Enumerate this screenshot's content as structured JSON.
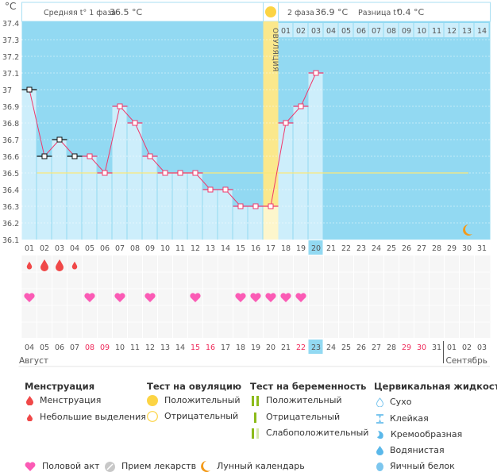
{
  "chart_data": {
    "type": "line",
    "ylabel": "°C",
    "ylim": [
      36.1,
      37.4
    ],
    "yticks": [
      "37.4",
      "37.3",
      "37.2",
      "37.1",
      "37",
      "36.9",
      "36.8",
      "36.7",
      "36.6",
      "36.5",
      "36.4",
      "36.3",
      "36.2",
      "36.1"
    ],
    "header": {
      "phase1_label": "Средняя t° 1 фаза",
      "phase1_value": "36.5 °C",
      "phase2_label": "2 фаза",
      "phase2_value": "36.9 °C",
      "diff_label": "Разница t°",
      "diff_value": "0.4 °C"
    },
    "ovulation_label": "ОВУЛЯЦИЯ",
    "ovulation_day": 17,
    "coverline": 36.5,
    "cycle_days": [
      "01",
      "02",
      "03",
      "04",
      "05",
      "06",
      "07",
      "08",
      "09",
      "10",
      "11",
      "12",
      "13",
      "14",
      "15",
      "16",
      "17",
      "18",
      "19",
      "20",
      "21",
      "22",
      "23",
      "24",
      "25",
      "26",
      "27",
      "28",
      "29",
      "30",
      "31"
    ],
    "today_cycle_day": 20,
    "luteal_days": [
      "01",
      "02",
      "03",
      "04",
      "05",
      "06",
      "07",
      "08",
      "09",
      "10",
      "11",
      "12",
      "13",
      "14"
    ],
    "temperatures": [
      37.0,
      36.6,
      36.7,
      36.6,
      36.6,
      36.5,
      36.9,
      36.8,
      36.6,
      36.5,
      36.5,
      36.5,
      36.4,
      36.4,
      36.3,
      36.3,
      36.3,
      36.8,
      36.9,
      37.1
    ],
    "menstruation_marker_days": [
      1,
      2,
      3,
      4
    ],
    "menstruation": [
      {
        "day": 1,
        "type": "small"
      },
      {
        "day": 2,
        "type": "full"
      },
      {
        "day": 3,
        "type": "full"
      },
      {
        "day": 4,
        "type": "small"
      }
    ],
    "intercourse_days": [
      1,
      5,
      7,
      9,
      12,
      15,
      16,
      17,
      18,
      19
    ],
    "moon_day": 30,
    "dates": [
      "04",
      "05",
      "06",
      "07",
      "08",
      "09",
      "10",
      "11",
      "12",
      "13",
      "14",
      "15",
      "16",
      "17",
      "18",
      "19",
      "20",
      "21",
      "22",
      "23",
      "24",
      "25",
      "26",
      "27",
      "28",
      "29",
      "30",
      "31",
      "01",
      "02",
      "03"
    ],
    "weekend_dates_idx": [
      4,
      5,
      11,
      12,
      18,
      25,
      26
    ],
    "today_date_idx": 19,
    "months": [
      "Август",
      "Сентябрь"
    ],
    "colors": {
      "bg": "#92d9f2",
      "bar": "#cdeefb",
      "line": "#f0386b",
      "coverline": "#fbe77a",
      "ovulation": "#fbe88c",
      "drop": "#f04848",
      "heart": "#fb5bb5",
      "moon": "#f39a1a",
      "weekend": "#ee2a5a"
    }
  },
  "legend": {
    "menstruation": {
      "title": "Менструация",
      "items": [
        "Менструация",
        "Небольшие выделения"
      ]
    },
    "ovulation_test": {
      "title": "Тест на овуляцию",
      "items": [
        "Положительный",
        "Отрицательный"
      ]
    },
    "pregnancy_test": {
      "title": "Тест на беременность",
      "items": [
        "Положительный",
        "Отрицательный",
        "Слабоположительный"
      ]
    },
    "cervical": {
      "title": "Цервикальная жидкость",
      "items": [
        "Сухо",
        "Клейкая",
        "Кремообразная",
        "Водянистая",
        "Яичный белок"
      ]
    },
    "bottom": [
      "Половой акт",
      "Прием лекарств",
      "Лунный календарь"
    ]
  }
}
